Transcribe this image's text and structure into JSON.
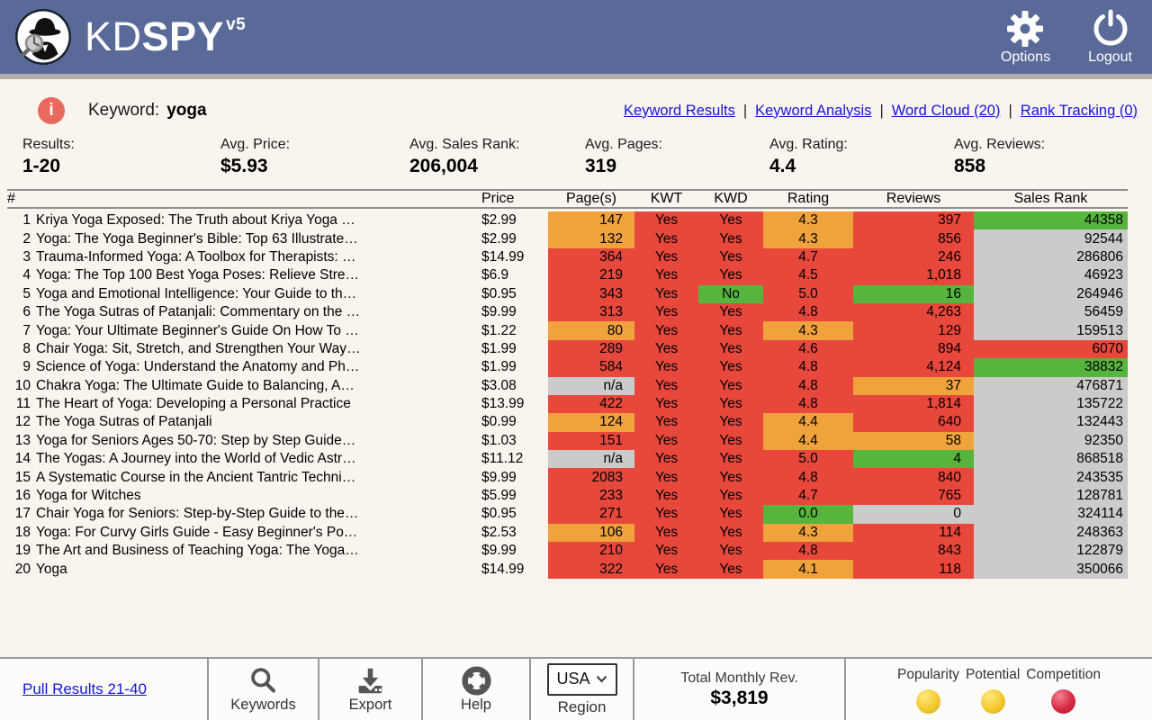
{
  "header": {
    "brand_kd": "KD",
    "brand_spy": "SPY",
    "brand_version": "v5",
    "options_label": "Options",
    "logout_label": "Logout"
  },
  "toolbar": {
    "keyword_label": "Keyword:",
    "keyword_value": "yoga",
    "separator": "|",
    "nav_links": [
      {
        "label": "Keyword Results"
      },
      {
        "label": "Keyword Analysis"
      },
      {
        "label": "Word Cloud (20)"
      },
      {
        "label": "Rank Tracking (0)"
      }
    ]
  },
  "stats": [
    {
      "label": "Results:",
      "value": "1-20"
    },
    {
      "label": "Avg. Price:",
      "value": "$5.93"
    },
    {
      "label": "Avg. Sales Rank:",
      "value": "206,004"
    },
    {
      "label": "Avg. Pages:",
      "value": "319"
    },
    {
      "label": "Avg. Rating:",
      "value": "4.4"
    },
    {
      "label": "Avg. Reviews:",
      "value": "858"
    }
  ],
  "table": {
    "headers": {
      "num": "#",
      "title": "",
      "price": "Price",
      "pages": "Page(s)",
      "kwt": "KWT",
      "kwd": "KWD",
      "rating": "Rating",
      "reviews": "Reviews",
      "rank": "Sales Rank"
    },
    "rows": [
      {
        "num": "1",
        "title": "Kriya Yoga Exposed: The Truth about Kriya Yoga …",
        "price": "$2.99",
        "pages": [
          "147",
          "orange"
        ],
        "kwt": [
          "Yes",
          "red"
        ],
        "kwd": [
          "Yes",
          "red"
        ],
        "rating": [
          "4.3",
          "orange"
        ],
        "reviews": [
          "397",
          "red"
        ],
        "rank": [
          "44358",
          "green"
        ]
      },
      {
        "num": "2",
        "title": "Yoga: The Yoga Beginner's Bible: Top 63 Illustrate…",
        "price": "$2.99",
        "pages": [
          "132",
          "orange"
        ],
        "kwt": [
          "Yes",
          "red"
        ],
        "kwd": [
          "Yes",
          "red"
        ],
        "rating": [
          "4.3",
          "orange"
        ],
        "reviews": [
          "856",
          "red"
        ],
        "rank": [
          "92544",
          "gray"
        ]
      },
      {
        "num": "3",
        "title": "Trauma-Informed Yoga: A Toolbox for Therapists: …",
        "price": "$14.99",
        "pages": [
          "364",
          "red"
        ],
        "kwt": [
          "Yes",
          "red"
        ],
        "kwd": [
          "Yes",
          "red"
        ],
        "rating": [
          "4.7",
          "red"
        ],
        "reviews": [
          "246",
          "red"
        ],
        "rank": [
          "286806",
          "gray"
        ]
      },
      {
        "num": "4",
        "title": "Yoga: The Top 100 Best Yoga Poses: Relieve Stre…",
        "price": "$6.9",
        "pages": [
          "219",
          "red"
        ],
        "kwt": [
          "Yes",
          "red"
        ],
        "kwd": [
          "Yes",
          "red"
        ],
        "rating": [
          "4.5",
          "red"
        ],
        "reviews": [
          "1,018",
          "red"
        ],
        "rank": [
          "46923",
          "gray"
        ]
      },
      {
        "num": "5",
        "title": "Yoga and Emotional Intelligence: Your Guide to th…",
        "price": "$0.95",
        "pages": [
          "343",
          "red"
        ],
        "kwt": [
          "Yes",
          "red"
        ],
        "kwd": [
          "No",
          "green"
        ],
        "rating": [
          "5.0",
          "red"
        ],
        "reviews": [
          "16",
          "green"
        ],
        "rank": [
          "264946",
          "gray"
        ]
      },
      {
        "num": "6",
        "title": "The Yoga Sutras of Patanjali: Commentary on the …",
        "price": "$9.99",
        "pages": [
          "313",
          "red"
        ],
        "kwt": [
          "Yes",
          "red"
        ],
        "kwd": [
          "Yes",
          "red"
        ],
        "rating": [
          "4.8",
          "red"
        ],
        "reviews": [
          "4,263",
          "red"
        ],
        "rank": [
          "56459",
          "gray"
        ]
      },
      {
        "num": "7",
        "title": "Yoga: Your Ultimate Beginner's Guide On How To …",
        "price": "$1.22",
        "pages": [
          "80",
          "orange"
        ],
        "kwt": [
          "Yes",
          "red"
        ],
        "kwd": [
          "Yes",
          "red"
        ],
        "rating": [
          "4.3",
          "orange"
        ],
        "reviews": [
          "129",
          "red"
        ],
        "rank": [
          "159513",
          "gray"
        ]
      },
      {
        "num": "8",
        "title": "Chair Yoga: Sit, Stretch, and Strengthen Your Way…",
        "price": "$1.99",
        "pages": [
          "289",
          "red"
        ],
        "kwt": [
          "Yes",
          "red"
        ],
        "kwd": [
          "Yes",
          "red"
        ],
        "rating": [
          "4.6",
          "red"
        ],
        "reviews": [
          "894",
          "red"
        ],
        "rank": [
          "6070",
          "red"
        ]
      },
      {
        "num": "9",
        "title": "Science of Yoga: Understand the Anatomy and Ph…",
        "price": "$1.99",
        "pages": [
          "584",
          "red"
        ],
        "kwt": [
          "Yes",
          "red"
        ],
        "kwd": [
          "Yes",
          "red"
        ],
        "rating": [
          "4.8",
          "red"
        ],
        "reviews": [
          "4,124",
          "red"
        ],
        "rank": [
          "38832",
          "green"
        ]
      },
      {
        "num": "10",
        "title": "Chakra Yoga: The Ultimate Guide to Balancing, A…",
        "price": "$3.08",
        "pages": [
          "n/a",
          "gray"
        ],
        "kwt": [
          "Yes",
          "red"
        ],
        "kwd": [
          "Yes",
          "red"
        ],
        "rating": [
          "4.8",
          "red"
        ],
        "reviews": [
          "37",
          "orange"
        ],
        "rank": [
          "476871",
          "gray"
        ]
      },
      {
        "num": "11",
        "title": "The Heart of Yoga: Developing a Personal Practice",
        "price": "$13.99",
        "pages": [
          "422",
          "red"
        ],
        "kwt": [
          "Yes",
          "red"
        ],
        "kwd": [
          "Yes",
          "red"
        ],
        "rating": [
          "4.8",
          "red"
        ],
        "reviews": [
          "1,814",
          "red"
        ],
        "rank": [
          "135722",
          "gray"
        ]
      },
      {
        "num": "12",
        "title": "The Yoga Sutras of Patanjali",
        "price": "$0.99",
        "pages": [
          "124",
          "orange"
        ],
        "kwt": [
          "Yes",
          "red"
        ],
        "kwd": [
          "Yes",
          "red"
        ],
        "rating": [
          "4.4",
          "orange"
        ],
        "reviews": [
          "640",
          "red"
        ],
        "rank": [
          "132443",
          "gray"
        ]
      },
      {
        "num": "13",
        "title": "Yoga for Seniors Ages 50-70: Step by Step Guide…",
        "price": "$1.03",
        "pages": [
          "151",
          "red"
        ],
        "kwt": [
          "Yes",
          "red"
        ],
        "kwd": [
          "Yes",
          "red"
        ],
        "rating": [
          "4.4",
          "orange"
        ],
        "reviews": [
          "58",
          "orange"
        ],
        "rank": [
          "92350",
          "gray"
        ]
      },
      {
        "num": "14",
        "title": "The Yogas: A Journey into the World of Vedic Astr…",
        "price": "$11.12",
        "pages": [
          "n/a",
          "gray"
        ],
        "kwt": [
          "Yes",
          "red"
        ],
        "kwd": [
          "Yes",
          "red"
        ],
        "rating": [
          "5.0",
          "red"
        ],
        "reviews": [
          "4",
          "green"
        ],
        "rank": [
          "868518",
          "gray"
        ]
      },
      {
        "num": "15",
        "title": "A Systematic Course in the Ancient Tantric Techni…",
        "price": "$9.99",
        "pages": [
          "2083",
          "red"
        ],
        "kwt": [
          "Yes",
          "red"
        ],
        "kwd": [
          "Yes",
          "red"
        ],
        "rating": [
          "4.8",
          "red"
        ],
        "reviews": [
          "840",
          "red"
        ],
        "rank": [
          "243535",
          "gray"
        ]
      },
      {
        "num": "16",
        "title": "Yoga for Witches",
        "price": "$5.99",
        "pages": [
          "233",
          "red"
        ],
        "kwt": [
          "Yes",
          "red"
        ],
        "kwd": [
          "Yes",
          "red"
        ],
        "rating": [
          "4.7",
          "red"
        ],
        "reviews": [
          "765",
          "red"
        ],
        "rank": [
          "128781",
          "gray"
        ]
      },
      {
        "num": "17",
        "title": "Chair Yoga for Seniors: Step-by-Step Guide to the…",
        "price": "$0.95",
        "pages": [
          "271",
          "red"
        ],
        "kwt": [
          "Yes",
          "red"
        ],
        "kwd": [
          "Yes",
          "red"
        ],
        "rating": [
          "0.0",
          "green"
        ],
        "reviews": [
          "0",
          "gray"
        ],
        "rank": [
          "324114",
          "gray"
        ]
      },
      {
        "num": "18",
        "title": "Yoga: For Curvy Girls Guide - Easy Beginner's Po…",
        "price": "$2.53",
        "pages": [
          "106",
          "orange"
        ],
        "kwt": [
          "Yes",
          "red"
        ],
        "kwd": [
          "Yes",
          "red"
        ],
        "rating": [
          "4.3",
          "orange"
        ],
        "reviews": [
          "114",
          "red"
        ],
        "rank": [
          "248363",
          "gray"
        ]
      },
      {
        "num": "19",
        "title": "The Art and Business of Teaching Yoga: The Yoga…",
        "price": "$9.99",
        "pages": [
          "210",
          "red"
        ],
        "kwt": [
          "Yes",
          "red"
        ],
        "kwd": [
          "Yes",
          "red"
        ],
        "rating": [
          "4.8",
          "red"
        ],
        "reviews": [
          "843",
          "red"
        ],
        "rank": [
          "122879",
          "gray"
        ]
      },
      {
        "num": "20",
        "title": "Yoga",
        "price": "$14.99",
        "pages": [
          "322",
          "red"
        ],
        "kwt": [
          "Yes",
          "red"
        ],
        "kwd": [
          "Yes",
          "red"
        ],
        "rating": [
          "4.1",
          "orange"
        ],
        "reviews": [
          "118",
          "red"
        ],
        "rank": [
          "350066",
          "gray"
        ]
      }
    ]
  },
  "footer": {
    "pull_results_label": "Pull Results 21-40",
    "buttons": [
      {
        "icon": "search-icon",
        "label": "Keywords"
      },
      {
        "icon": "export-icon",
        "label": "Export"
      },
      {
        "icon": "help-icon",
        "label": "Help"
      }
    ],
    "region": {
      "value": "USA",
      "label": "Region"
    },
    "revenue": {
      "label": "Total Monthly Rev.",
      "value": "$3,819"
    },
    "indicators": [
      {
        "label": "Popularity",
        "color": "yellow"
      },
      {
        "label": "Potential",
        "color": "yellow"
      },
      {
        "label": "Competition",
        "color": "red"
      }
    ]
  },
  "colors": {
    "header_bar": "#596a99",
    "page_background": "#faf4ee",
    "cell_red": "#e8473c",
    "cell_orange": "#f0a33d",
    "cell_green": "#56b53c",
    "cell_gray": "#cbcbcb",
    "link_blue": "#1414e0",
    "info_icon": "#e9695f",
    "indicator_yellow": "#f2c92f",
    "indicator_red": "#d62a44"
  }
}
